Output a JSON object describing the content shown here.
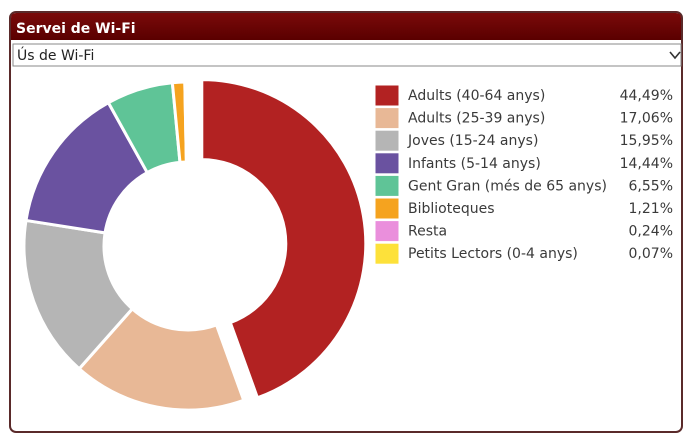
{
  "panel": {
    "title": "Servei de Wi-Fi",
    "select": "Ús de Wi-Fi"
  },
  "chart_data": {
    "type": "donut",
    "categories": [
      "Adults (40-64 anys)",
      "Adults (25-39 anys)",
      "Joves (15-24 anys)",
      "Infants (5-14 anys)",
      "Gent Gran (més de 65 anys)",
      "Biblioteques",
      "Resta",
      "Petits Lectors (0-4 anys)"
    ],
    "values": [
      44.49,
      17.06,
      15.95,
      14.44,
      6.55,
      1.21,
      0.24,
      0.07
    ],
    "value_labels": [
      "44,49%",
      "17,06%",
      "15,95%",
      "14,44%",
      "6,55%",
      "1,21%",
      "0,24%",
      "0,07%"
    ],
    "colors": [
      "#b22222",
      "#e8b896",
      "#b5b5b5",
      "#6a52a0",
      "#5fc497",
      "#f5a31f",
      "#ea8fdc",
      "#fde13a"
    ],
    "legend": "right"
  }
}
